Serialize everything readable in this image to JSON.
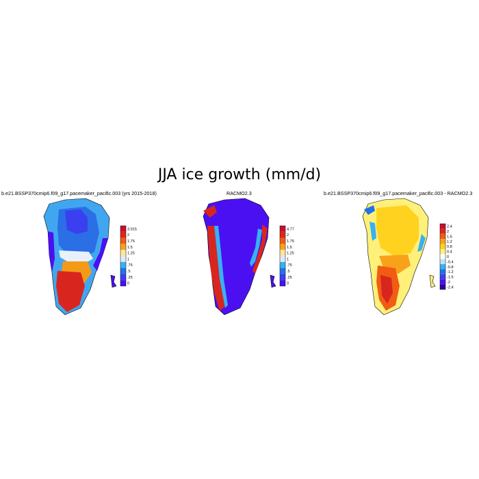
{
  "figure": {
    "title": "JJA ice growth (mm/d)"
  },
  "panels": [
    {
      "title": "b.e21.BSSP370cmip6.f09_g17.pacemaker_pacific.003 (yrs 2015-2018)",
      "colorbar_labels": [
        "3.915",
        "2",
        "1.75",
        "1.5",
        "1.25",
        "1",
        ".75",
        ".5",
        ".25",
        "0"
      ],
      "colorbar_colors": [
        "#c8102e",
        "#e0261d",
        "#f25c12",
        "#f8a21b",
        "#fde4a0",
        "#dfeaf6",
        "#37b1f1",
        "#1f74e8",
        "#3a3ff0",
        "#4b10f2"
      ]
    },
    {
      "title": "RACMO2.3",
      "colorbar_labels": [
        "4.77",
        "2",
        "1.75",
        "1.5",
        "1.25",
        "1",
        ".75",
        ".5",
        ".25",
        "0"
      ],
      "colorbar_colors": [
        "#c8102e",
        "#e0261d",
        "#f25c12",
        "#f8a21b",
        "#fde4a0",
        "#dfeaf6",
        "#37b1f1",
        "#1f74e8",
        "#3a3ff0",
        "#4b10f2"
      ]
    },
    {
      "title": "b.e21.BSSP370cmip6.f09_g17.pacemaker_pacific.003 - RACMO2.3",
      "colorbar_labels": [
        "2.4",
        "2",
        "1.6",
        "1.2",
        "0.8",
        "0.4",
        "0",
        "-0.4",
        "-0.8",
        "-1.2",
        "-1.6",
        "-2",
        "-2.4"
      ],
      "colorbar_colors": [
        "#c8102e",
        "#e0261d",
        "#f25c12",
        "#f8a21b",
        "#ffd21f",
        "#fff07a",
        "#ffffff",
        "#bfe3f6",
        "#37b1f1",
        "#1f74e8",
        "#3a3ff0",
        "#4b10f2",
        "#2a00a0"
      ]
    }
  ],
  "map_colors": {
    "deep_blue": "#4b10f2",
    "blue": "#2a6fe6",
    "light_blue": "#41a6f0",
    "white": "#f4f4f4",
    "orange": "#f59a17",
    "red": "#d8261f",
    "yellow": "#ffd21f",
    "pale_yellow": "#fff07a"
  }
}
